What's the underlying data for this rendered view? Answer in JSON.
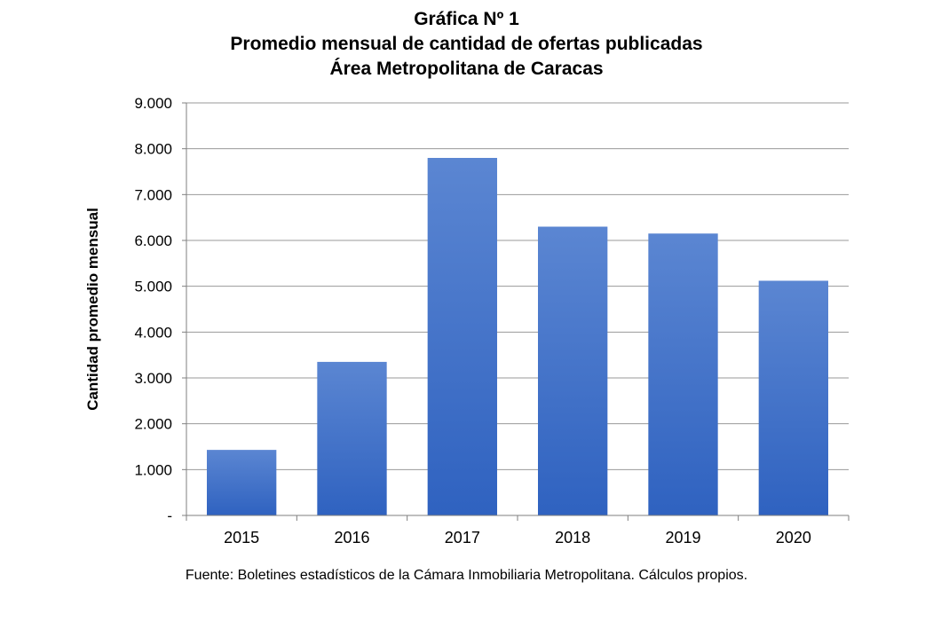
{
  "chart_data": {
    "type": "bar",
    "title_lines": [
      "Gráfica Nº 1",
      "Promedio mensual de cantidad de ofertas publicadas",
      "Área Metropolitana de Caracas"
    ],
    "xlabel": "",
    "ylabel": "Cantidad promedio mensual",
    "categories": [
      "2015",
      "2016",
      "2017",
      "2018",
      "2019",
      "2020"
    ],
    "values": [
      1430,
      3350,
      7800,
      6300,
      6150,
      5120
    ],
    "ylim": [
      0,
      9000
    ],
    "yticks": [
      0,
      1000,
      2000,
      3000,
      4000,
      5000,
      6000,
      7000,
      8000,
      9000
    ],
    "ytick_labels": [
      "-",
      "1.000",
      "2.000",
      "3.000",
      "4.000",
      "5.000",
      "6.000",
      "7.000",
      "8.000",
      "9.000"
    ],
    "grid": true,
    "bar_color_top": "#5b86d2",
    "bar_color_bottom": "#2f62c0",
    "source": "Fuente: Boletines estadísticos de la Cámara Inmobiliaria Metropolitana. Cálculos propios."
  }
}
